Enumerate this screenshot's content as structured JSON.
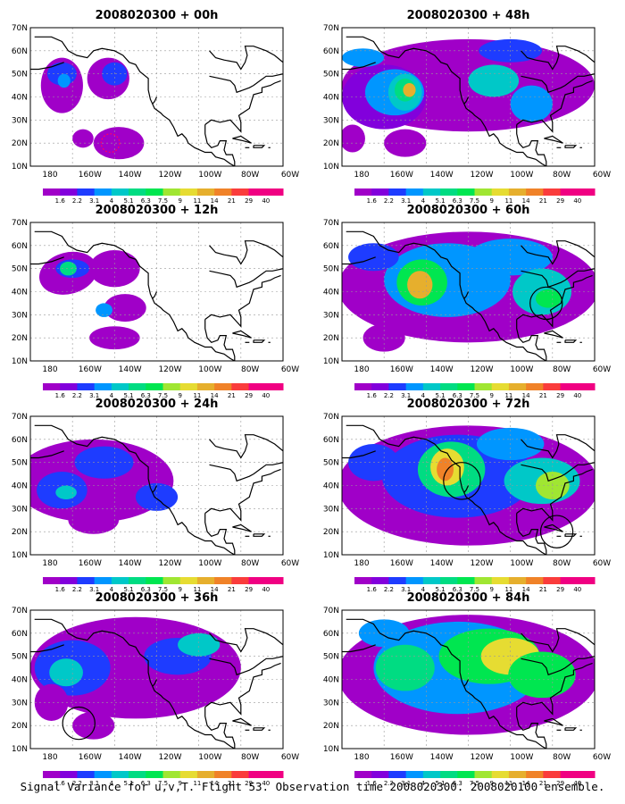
{
  "panels": [
    {
      "title": "2008020300 + 00h"
    },
    {
      "title": "2008020300 + 48h"
    },
    {
      "title": "2008020300 + 12h"
    },
    {
      "title": "2008020300 + 60h"
    },
    {
      "title": "2008020300 + 24h"
    },
    {
      "title": "2008020300 + 72h"
    },
    {
      "title": "2008020300 + 36h"
    },
    {
      "title": "2008020300 + 84h"
    }
  ],
  "lat_labels": [
    "70N",
    "60N",
    "50N",
    "40N",
    "30N",
    "20N",
    "10N"
  ],
  "lon_labels": [
    "180",
    "160W",
    "140W",
    "120W",
    "100W",
    "80W",
    "60W"
  ],
  "colorbar": {
    "labels": [
      "1.6",
      "2.2",
      "3.1",
      "4",
      "5.1",
      "6.3",
      "7.5",
      "9",
      "11",
      "14",
      "21",
      "29",
      "40"
    ],
    "colors": [
      "#a000c8",
      "#8200dc",
      "#1e3cff",
      "#0096ff",
      "#00c8c8",
      "#00dc82",
      "#00e650",
      "#a0e632",
      "#e6dc32",
      "#e6af2d",
      "#f08228",
      "#fa3c3c",
      "#f00082"
    ]
  },
  "caption": "Signal Variance for u,v,T. Flight 53. Observation time 2008020300. 2008020100 ensemble."
}
